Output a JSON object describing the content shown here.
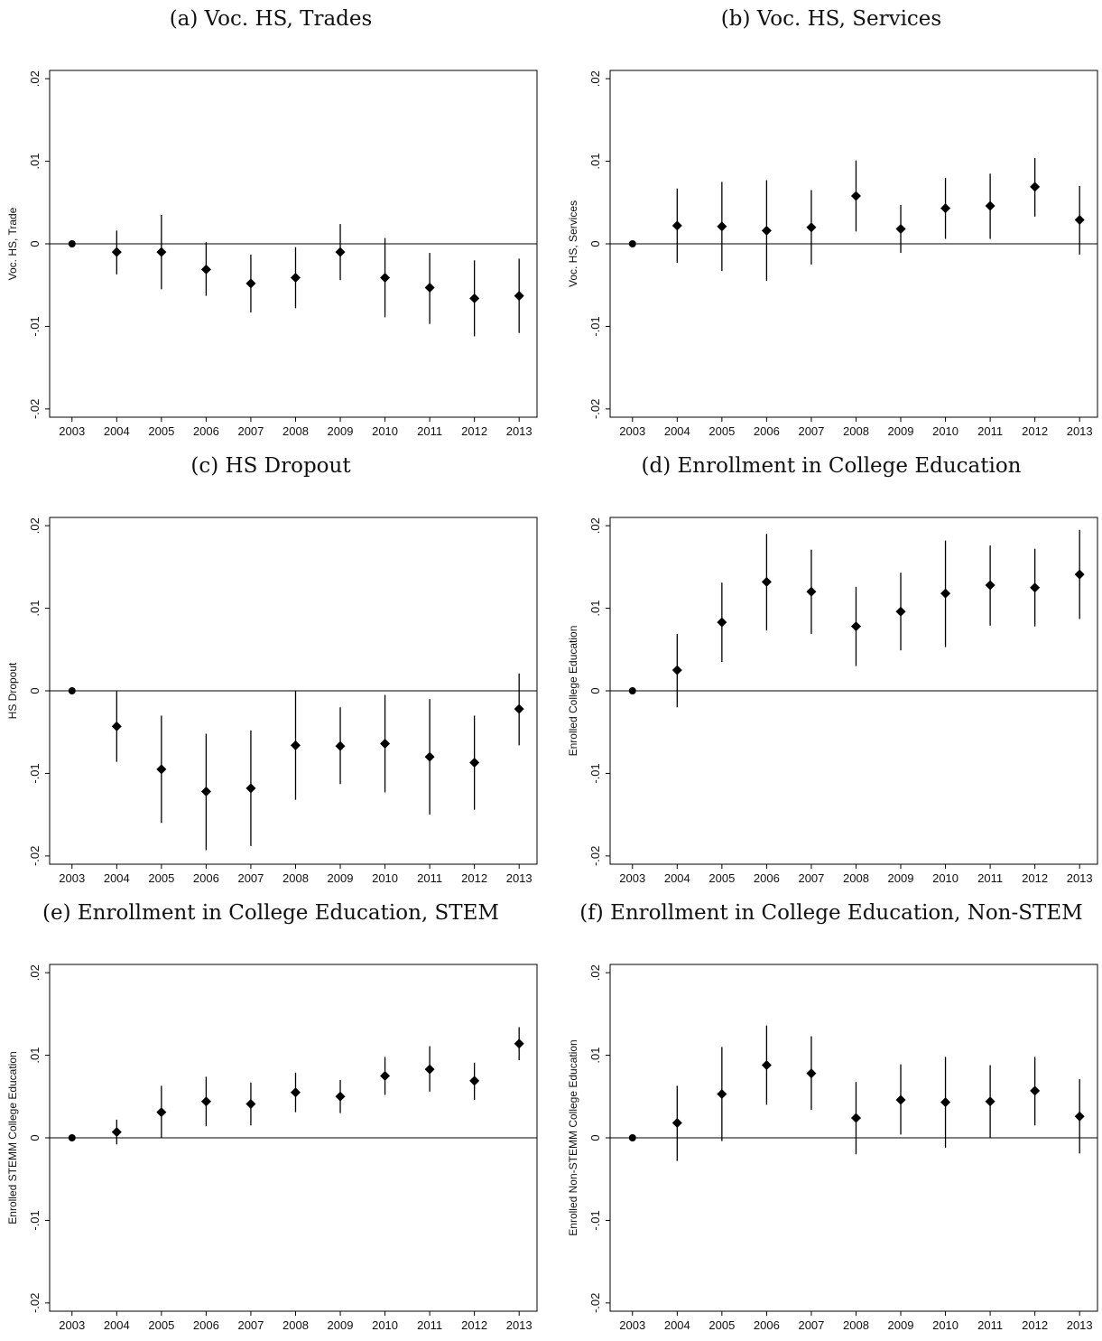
{
  "chart_data": [
    {
      "type": "scatter",
      "title": "(a) Voc. HS, Trades",
      "xlabel": "",
      "ylabel": "Voc. HS, Trade",
      "x": [
        2003,
        2004,
        2005,
        2006,
        2007,
        2008,
        2009,
        2010,
        2011,
        2012,
        2013
      ],
      "estimate": [
        0,
        -0.001,
        -0.001,
        -0.0031,
        -0.0048,
        -0.0041,
        -0.001,
        -0.0041,
        -0.0053,
        -0.0066,
        -0.0063
      ],
      "ci_low": [
        0,
        -0.0037,
        -0.0055,
        -0.0063,
        -0.0083,
        -0.0078,
        -0.0044,
        -0.0089,
        -0.0097,
        -0.0112,
        -0.0108
      ],
      "ci_high": [
        0,
        0.0016,
        0.0035,
        0.0002,
        -0.0013,
        -0.0004,
        0.0024,
        0.0007,
        -0.0011,
        -0.002,
        -0.0018
      ],
      "xlim": [
        2002.5,
        2013.4
      ],
      "ylim": [
        -0.021,
        0.021
      ],
      "yticks": [
        0.02,
        0.01,
        0,
        -0.01,
        -0.02
      ],
      "ytick_labels": [
        ".02",
        ".01",
        "0",
        "-.01",
        "-.02"
      ],
      "xtick_labels": [
        "2003",
        "2004",
        "2005",
        "2006",
        "2007",
        "2008",
        "2009",
        "2010",
        "2011",
        "2012",
        "2013"
      ],
      "reference_line": 0,
      "marker_color": "#000000"
    },
    {
      "type": "scatter",
      "title": "(b) Voc. HS, Services",
      "xlabel": "",
      "ylabel": "Voc. HS, Services",
      "x": [
        2003,
        2004,
        2005,
        2006,
        2007,
        2008,
        2009,
        2010,
        2011,
        2012,
        2013
      ],
      "estimate": [
        0,
        0.0022,
        0.0021,
        0.0016,
        0.002,
        0.0058,
        0.0018,
        0.0043,
        0.0046,
        0.0069,
        0.0029
      ],
      "ci_low": [
        0,
        -0.0023,
        -0.0033,
        -0.0045,
        -0.0025,
        0.0015,
        -0.0011,
        0.0006,
        0.0006,
        0.0033,
        -0.0013
      ],
      "ci_high": [
        0,
        0.0067,
        0.0075,
        0.0077,
        0.0065,
        0.0101,
        0.0047,
        0.008,
        0.0085,
        0.0104,
        0.007
      ],
      "xlim": [
        2002.5,
        2013.4
      ],
      "ylim": [
        -0.021,
        0.021
      ],
      "yticks": [
        0.02,
        0.01,
        0,
        -0.01,
        -0.02
      ],
      "ytick_labels": [
        ".02",
        ".01",
        "0",
        "-.01",
        "-.02"
      ],
      "xtick_labels": [
        "2003",
        "2004",
        "2005",
        "2006",
        "2007",
        "2008",
        "2009",
        "2010",
        "2011",
        "2012",
        "2013"
      ],
      "reference_line": 0,
      "marker_color": "#000000"
    },
    {
      "type": "scatter",
      "title": "(c) HS Dropout",
      "xlabel": "",
      "ylabel": "HS Dropout",
      "x": [
        2003,
        2004,
        2005,
        2006,
        2007,
        2008,
        2009,
        2010,
        2011,
        2012,
        2013
      ],
      "estimate": [
        0,
        -0.0043,
        -0.0095,
        -0.0122,
        -0.0118,
        -0.0066,
        -0.0067,
        -0.0064,
        -0.008,
        -0.0087,
        -0.0022
      ],
      "ci_low": [
        0,
        -0.0086,
        -0.016,
        -0.0193,
        -0.0188,
        -0.0132,
        -0.0113,
        -0.0123,
        -0.015,
        -0.0144,
        -0.0066
      ],
      "ci_high": [
        0,
        0,
        -0.003,
        -0.0052,
        -0.0048,
        0,
        -0.002,
        -0.0005,
        -0.001,
        -0.003,
        0.0021
      ],
      "xlim": [
        2002.5,
        2013.4
      ],
      "ylim": [
        -0.021,
        0.021
      ],
      "yticks": [
        0.02,
        0.01,
        0,
        -0.01,
        -0.02
      ],
      "ytick_labels": [
        ".02",
        ".01",
        "0",
        "-.01",
        "-.02"
      ],
      "xtick_labels": [
        "2003",
        "2004",
        "2005",
        "2006",
        "2007",
        "2008",
        "2009",
        "2010",
        "2011",
        "2012",
        "2013"
      ],
      "reference_line": 0,
      "marker_color": "#000000"
    },
    {
      "type": "scatter",
      "title": "(d) Enrollment in College Education",
      "xlabel": "",
      "ylabel": "Enrolled College Education",
      "x": [
        2003,
        2004,
        2005,
        2006,
        2007,
        2008,
        2009,
        2010,
        2011,
        2012,
        2013
      ],
      "estimate": [
        0,
        0.0025,
        0.0083,
        0.0132,
        0.012,
        0.0078,
        0.0096,
        0.0118,
        0.0128,
        0.0125,
        0.0141
      ],
      "ci_low": [
        0,
        -0.002,
        0.0035,
        0.0073,
        0.0069,
        0.003,
        0.0049,
        0.0053,
        0.0079,
        0.0078,
        0.0087
      ],
      "ci_high": [
        0,
        0.0069,
        0.0131,
        0.019,
        0.0171,
        0.0126,
        0.0143,
        0.0182,
        0.0176,
        0.0172,
        0.0195
      ],
      "xlim": [
        2002.5,
        2013.4
      ],
      "ylim": [
        -0.021,
        0.021
      ],
      "yticks": [
        0.02,
        0.01,
        0,
        -0.01,
        -0.02
      ],
      "ytick_labels": [
        ".02",
        ".01",
        "0",
        "-.01",
        "-.02"
      ],
      "xtick_labels": [
        "2003",
        "2004",
        "2005",
        "2006",
        "2007",
        "2008",
        "2009",
        "2010",
        "2011",
        "2012",
        "2013"
      ],
      "reference_line": 0,
      "marker_color": "#000000"
    },
    {
      "type": "scatter",
      "title": "(e) Enrollment in College Education, STEM",
      "xlabel": "",
      "ylabel": "Enrolled STEMM College Education",
      "x": [
        2003,
        2004,
        2005,
        2006,
        2007,
        2008,
        2009,
        2010,
        2011,
        2012,
        2013
      ],
      "estimate": [
        0,
        0.0007,
        0.0031,
        0.0044,
        0.0041,
        0.0055,
        0.005,
        0.0075,
        0.0083,
        0.0069,
        0.0114
      ],
      "ci_low": [
        0,
        -0.0008,
        0,
        0.0014,
        0.0015,
        0.0031,
        0.003,
        0.0052,
        0.0056,
        0.0046,
        0.0094
      ],
      "ci_high": [
        0,
        0.0022,
        0.0063,
        0.0074,
        0.0067,
        0.0079,
        0.007,
        0.0098,
        0.0111,
        0.0091,
        0.0134
      ],
      "xlim": [
        2002.5,
        2013.4
      ],
      "ylim": [
        -0.021,
        0.021
      ],
      "yticks": [
        0.02,
        0.01,
        0,
        -0.01,
        -0.02
      ],
      "ytick_labels": [
        ".02",
        ".01",
        "0",
        "-.01",
        "-.02"
      ],
      "xtick_labels": [
        "2003",
        "2004",
        "2005",
        "2006",
        "2007",
        "2008",
        "2009",
        "2010",
        "2011",
        "2012",
        "2013"
      ],
      "reference_line": 0,
      "marker_color": "#000000"
    },
    {
      "type": "scatter",
      "title": "(f) Enrollment in College Education, Non-STEM",
      "xlabel": "",
      "ylabel": "Enrolled Non-STEMM College Education",
      "x": [
        2003,
        2004,
        2005,
        2006,
        2007,
        2008,
        2009,
        2010,
        2011,
        2012,
        2013
      ],
      "estimate": [
        0,
        0.0018,
        0.0053,
        0.0088,
        0.0078,
        0.0024,
        0.0046,
        0.0043,
        0.0044,
        0.0057,
        0.0026
      ],
      "ci_low": [
        0,
        -0.0028,
        -0.0004,
        0.004,
        0.0034,
        -0.002,
        0.0004,
        -0.0012,
        0,
        0.0015,
        -0.0019
      ],
      "ci_high": [
        0,
        0.0063,
        0.011,
        0.0136,
        0.0123,
        0.0068,
        0.0089,
        0.0098,
        0.0088,
        0.0098,
        0.0071
      ],
      "xlim": [
        2002.5,
        2013.4
      ],
      "ylim": [
        -0.021,
        0.021
      ],
      "yticks": [
        0.02,
        0.01,
        0,
        -0.01,
        -0.02
      ],
      "ytick_labels": [
        ".02",
        ".01",
        "0",
        "-.01",
        "-.02"
      ],
      "xtick_labels": [
        "2003",
        "2004",
        "2005",
        "2006",
        "2007",
        "2008",
        "2009",
        "2010",
        "2011",
        "2012",
        "2013"
      ],
      "reference_line": 0,
      "marker_color": "#000000"
    }
  ]
}
